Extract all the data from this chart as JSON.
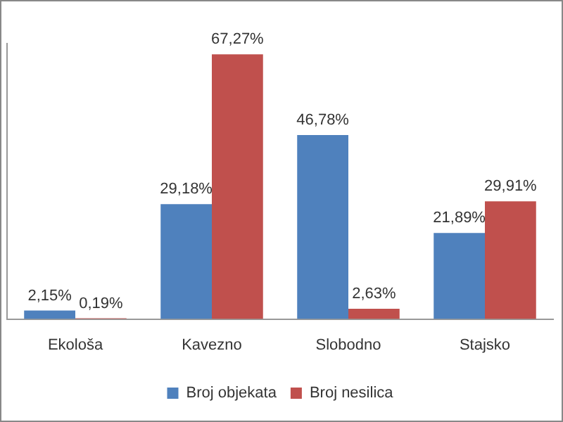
{
  "chart_data": {
    "type": "bar",
    "categories": [
      "Ekološa",
      "Kavezno",
      "Slobodno",
      "Stajsko"
    ],
    "series": [
      {
        "name": "Broj objekata",
        "color": "#4f81bd",
        "values": [
          2.15,
          29.18,
          46.78,
          21.89
        ],
        "value_labels": [
          "2,15%",
          "29,18%",
          "46,78%",
          "21,89%"
        ]
      },
      {
        "name": "Broj nesilica",
        "color": "#c0504d",
        "values": [
          0.19,
          67.27,
          2.63,
          29.91
        ],
        "value_labels": [
          "0,19%",
          "67,27%",
          "2,63%",
          "29,91%"
        ]
      }
    ],
    "legend": "bottom",
    "grid": false,
    "tick_labels": "x"
  }
}
